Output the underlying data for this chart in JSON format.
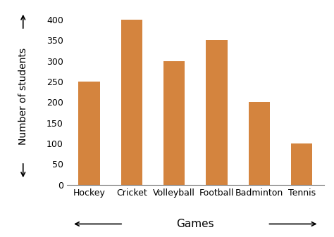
{
  "categories": [
    "Hockey",
    "Cricket",
    "Volleyball",
    "Football",
    "Badminton",
    "Tennis"
  ],
  "values": [
    250,
    400,
    300,
    350,
    200,
    100
  ],
  "bar_color": "#D4843E",
  "xlabel": "Games",
  "ylabel": "Number of students",
  "ylim": [
    0,
    430
  ],
  "yticks": [
    0,
    50,
    100,
    150,
    200,
    250,
    300,
    350,
    400
  ],
  "bar_width": 0.5,
  "background_color": "#ffffff",
  "ylabel_fontsize": 10,
  "xlabel_fontsize": 11,
  "tick_fontsize": 9
}
